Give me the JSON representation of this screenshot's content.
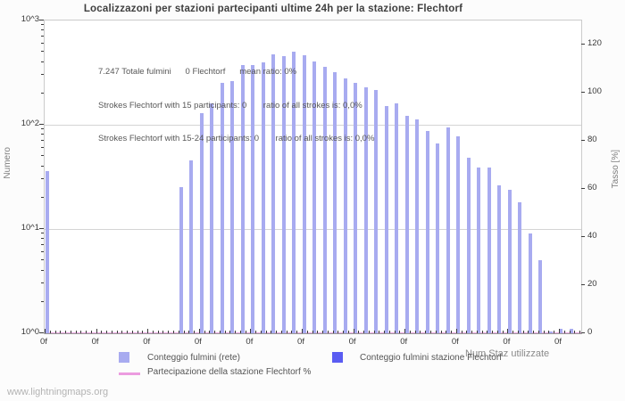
{
  "title": "Localizzazoni per stazioni partecipanti ultime 24h per la stazione: Flechtorf",
  "annotations": [
    "7.247 Totale fulmini      0 Flechtorf      mean ratio: 0%",
    "Strokes Flechtorf with 15 participants: 0       ratio of all strokes is: 0,0%",
    "Strokes Flechtorf with 15-24 participants: 0       ratio of all strokes is: 0,0%"
  ],
  "axes": {
    "left": {
      "title": "Numero",
      "ticks": [
        "10^3",
        "10^2",
        "10^1",
        "10^0"
      ]
    },
    "right": {
      "title": "Tasso [%]",
      "ticks": [
        "120",
        "100",
        "80",
        "60",
        "40",
        "20",
        "0"
      ]
    },
    "x": {
      "title": "Num Staz utilizzate",
      "labels": [
        "0f",
        "0f",
        "0f",
        "0f",
        "0f",
        "0f",
        "0f",
        "0f",
        "0f",
        "0f",
        "0f"
      ]
    }
  },
  "legend": {
    "network_label": "Conteggio fulmini (rete)",
    "station_label": "Conteggio fulmini stazione Flechtorf",
    "participation_label": "Partecipazione della stazione Flechtorf %"
  },
  "footer": "www.lightningmaps.org",
  "colors": {
    "bar_network": "#a8abf0",
    "bar_station": "#5a5cf2",
    "participation_line": "#ec9ce0",
    "grid": "#d4d4d4"
  },
  "chart_data": {
    "type": "bar",
    "y_scale": "log",
    "ylim": [
      1,
      1000
    ],
    "right_axis_ylim": [
      0,
      130
    ],
    "right_axis_ticks": [
      120,
      100,
      80,
      60,
      40,
      20,
      0
    ],
    "total_strokes_shown": "7.247",
    "station_strokes": 0,
    "mean_ratio_pct": 0,
    "title": "Localizzazoni per stazioni partecipanti ultime 24h per la stazione: Flechtorf",
    "series": [
      {
        "name": "Conteggio fulmini (rete)",
        "note": "x_px is pixel center of each bar on the station-count axis; v is strokes count (log scale)",
        "points": [
          [
            52,
            36
          ],
          [
            202,
            25
          ],
          [
            213,
            46
          ],
          [
            225,
            130
          ],
          [
            236,
            160
          ],
          [
            248,
            250
          ],
          [
            259,
            262
          ],
          [
            271,
            375
          ],
          [
            282,
            372
          ],
          [
            294,
            398
          ],
          [
            305,
            474
          ],
          [
            317,
            460
          ],
          [
            328,
            498
          ],
          [
            340,
            466
          ],
          [
            351,
            403
          ],
          [
            363,
            358
          ],
          [
            374,
            320
          ],
          [
            386,
            281
          ],
          [
            397,
            251
          ],
          [
            409,
            227
          ],
          [
            420,
            216
          ],
          [
            432,
            152
          ],
          [
            443,
            161
          ],
          [
            455,
            122
          ],
          [
            466,
            113
          ],
          [
            478,
            88
          ],
          [
            489,
            66
          ],
          [
            501,
            95
          ],
          [
            512,
            77
          ],
          [
            524,
            48
          ],
          [
            535,
            39
          ],
          [
            547,
            39
          ],
          [
            558,
            26
          ],
          [
            570,
            24
          ],
          [
            581,
            18
          ],
          [
            593,
            9
          ],
          [
            604,
            5
          ],
          [
            616,
            1.05
          ],
          [
            627,
            1.1
          ],
          [
            639,
            1.1
          ]
        ]
      },
      {
        "name": "Conteggio fulmini stazione Flechtorf",
        "points": []
      },
      {
        "name": "Partecipazione della stazione Flechtorf %",
        "constant_pct": 0
      }
    ]
  }
}
